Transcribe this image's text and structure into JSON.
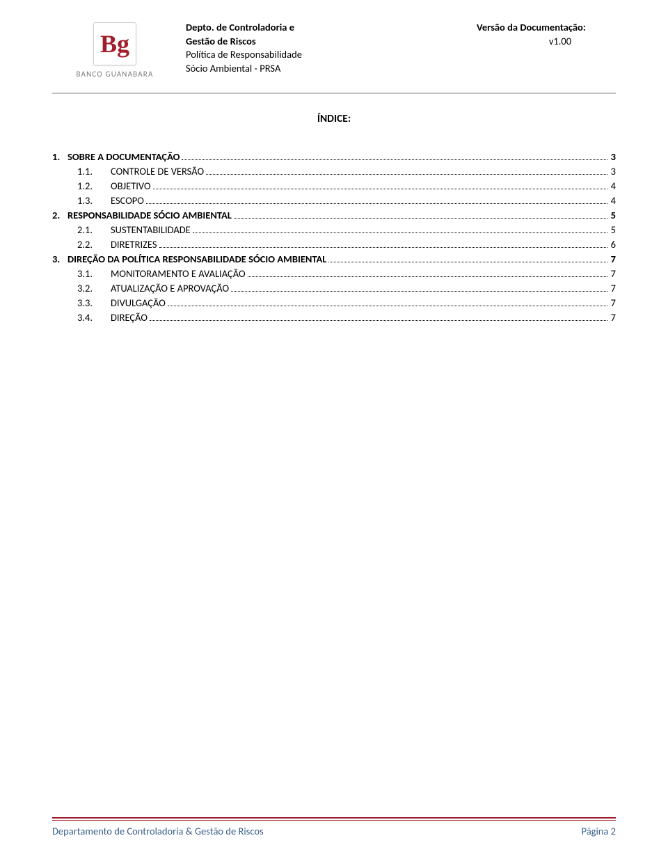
{
  "colors": {
    "accent_red": "#a11d2b",
    "header_divider": "#bfbfbf",
    "footer_text": "#3a5f8a",
    "logo_gray": "#7a7a7a",
    "text": "#000000",
    "background": "#ffffff"
  },
  "header": {
    "logo_text": "Bg",
    "bank_name": "BANCO GUANABARA",
    "dept_line1": "Depto. de Controladoria e",
    "dept_line2": "Gestão de Riscos",
    "policy_line1": "Política de Responsabilidade",
    "policy_line2": "Sócio Ambiental - PRSA",
    "version_label": "Versão da Documentação:",
    "version_value": "v1.00"
  },
  "index": {
    "title": "ÍNDICE:",
    "items": [
      {
        "level": 1,
        "num": "1.",
        "label": "SOBRE A DOCUMENTAÇÃO",
        "page": "3"
      },
      {
        "level": 2,
        "num": "1.1.",
        "label": "CONTROLE DE VERSÃO",
        "page": "3"
      },
      {
        "level": 2,
        "num": "1.2.",
        "label": "OBJETIVO",
        "page": "4"
      },
      {
        "level": 2,
        "num": "1.3.",
        "label": "ESCOPO",
        "page": "4"
      },
      {
        "level": 1,
        "num": "2.",
        "label": "RESPONSABILIDADE SÓCIO AMBIENTAL",
        "page": "5"
      },
      {
        "level": 2,
        "num": "2.1.",
        "label": "SUSTENTABILIDADE",
        "page": "5"
      },
      {
        "level": 2,
        "num": "2.2.",
        "label": "DIRETRIZES",
        "page": "6"
      },
      {
        "level": 1,
        "num": "3.",
        "label": "DIREÇÃO DA POLÍTICA RESPONSABILIDADE SÓCIO AMBIENTAL",
        "page": "7"
      },
      {
        "level": 2,
        "num": "3.1.",
        "label": "MONITORAMENTO E AVALIAÇÃO",
        "page": "7"
      },
      {
        "level": 2,
        "num": "3.2.",
        "label": "ATUALIZAÇÃO E APROVAÇÃO",
        "page": "7"
      },
      {
        "level": 2,
        "num": "3.3.",
        "label": "DIVULGAÇÃO",
        "page": "7"
      },
      {
        "level": 2,
        "num": "3.4.",
        "label": "DIREÇÃO",
        "page": "7"
      }
    ]
  },
  "footer": {
    "left": "Departamento de Controladoria & Gestão de Riscos",
    "right": "Página 2"
  }
}
